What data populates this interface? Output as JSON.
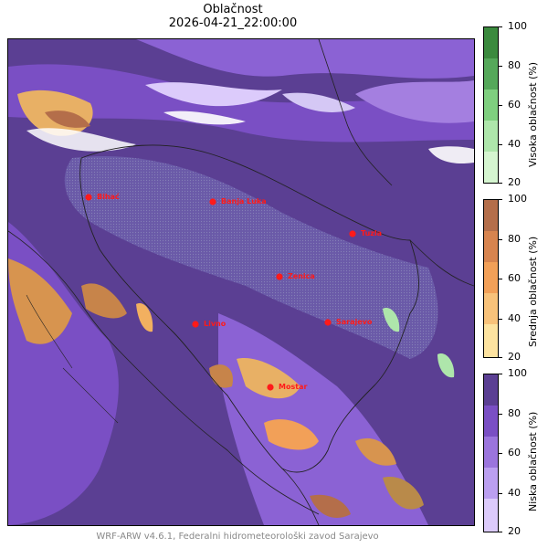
{
  "title": "Oblačnost",
  "datetime": "2026-04-21_22:00:00",
  "footer": "WRF-ARW v4.6.1, Federalni hidrometeorološki zavod Sarajevo",
  "colorbars": [
    {
      "label": "Visoka oblačnost (%)",
      "ticks": [
        "100",
        "80",
        "60",
        "40",
        "20"
      ],
      "colors": [
        "#3b8a3e",
        "#55a85a",
        "#7fcf7f",
        "#aee6ab",
        "#d5f5d0"
      ]
    },
    {
      "label": "Srednja oblačnost (%)",
      "ticks": [
        "100",
        "80",
        "60",
        "40",
        "20"
      ],
      "colors": [
        "#b46e4a",
        "#d7844f",
        "#f2a058",
        "#f8c27a",
        "#fde3a0"
      ]
    },
    {
      "label": "Niska oblačnost (%)",
      "ticks": [
        "100",
        "80",
        "60",
        "40",
        "20"
      ],
      "colors": [
        "#5b3f93",
        "#7a4fc4",
        "#9b75dd",
        "#bb9ff0",
        "#dccbfb"
      ]
    }
  ],
  "cities": [
    {
      "name": "Bihać"
    },
    {
      "name": "Banja Luka"
    },
    {
      "name": "Tuzla"
    },
    {
      "name": "Zenica"
    },
    {
      "name": "Livno"
    },
    {
      "name": "Sarajevo"
    },
    {
      "name": "Mostar"
    }
  ],
  "colors": {
    "marker": "#ff1a1a",
    "border": "#222222"
  }
}
